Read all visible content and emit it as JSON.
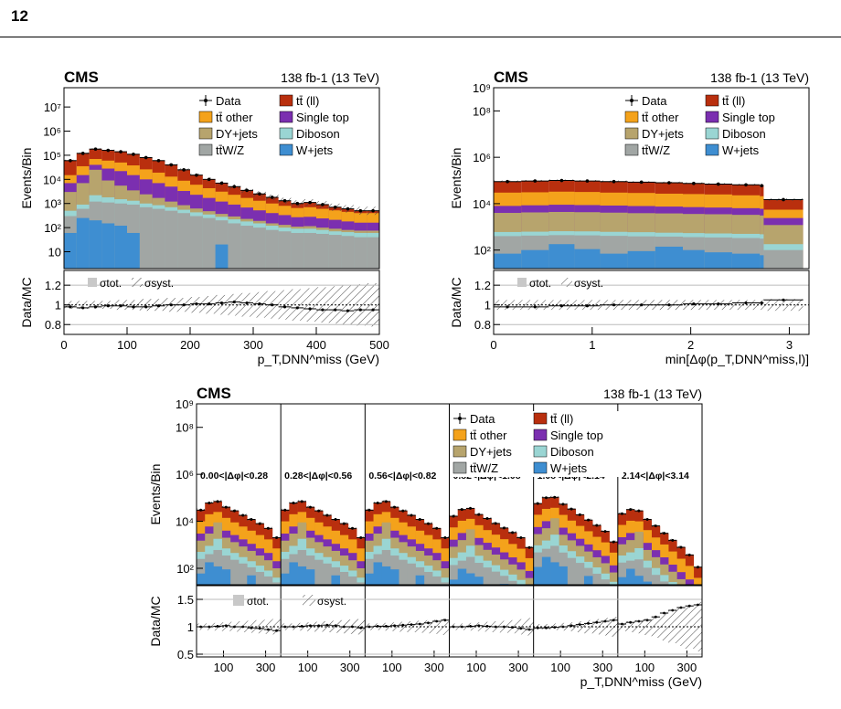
{
  "page": {
    "number": "12"
  },
  "colors": {
    "ttll": "#b92f0e",
    "ttother": "#f4a21b",
    "singletop": "#7b2fb0",
    "dyjets": "#b7a46d",
    "diboson": "#9ad5d3",
    "ttwz": "#a1a6a4",
    "wjets": "#3e8ed1",
    "stat_band": "#c8c8c8"
  },
  "legend": {
    "data": "Data",
    "ttll": "tt̄ (ll)",
    "ttother": "tt̄ other",
    "singletop": "Single top",
    "dyjets": "DY+jets",
    "diboson": "Diboson",
    "ttwz": "tt̄W/Z",
    "wjets": "W+jets"
  },
  "ratio_legend": {
    "tot": "σtot.",
    "syst": "σsyst."
  },
  "common": {
    "experiment": "CMS",
    "lumi": "138 fb-1 (13 TeV)",
    "ylabel_top": "Events/Bin",
    "ylabel_ratio": "Data/MC"
  },
  "chart_data": [
    {
      "id": "ptmiss",
      "type": "bar",
      "stacked": true,
      "log_y": true,
      "xlabel": "p_T,DNN^miss (GeV)",
      "xlim": [
        0,
        500
      ],
      "ylim_exponent": [
        0.3,
        7.8
      ],
      "ratio_ylim": [
        0.7,
        1.35
      ],
      "x_ticks": [
        0,
        100,
        200,
        300,
        400,
        500
      ],
      "y_ticks": [
        "10",
        "10²",
        "10³",
        "10⁴",
        "10⁵",
        "10⁶",
        "10⁷"
      ],
      "ratio_ticks": [
        0.8,
        1,
        1.2
      ],
      "bin_edges": [
        0,
        20,
        40,
        60,
        80,
        100,
        120,
        140,
        160,
        180,
        200,
        220,
        240,
        260,
        280,
        300,
        320,
        340,
        360,
        380,
        400,
        420,
        440,
        460,
        480,
        500
      ],
      "data": [
        60000,
        120000,
        180000,
        160000,
        140000,
        110000,
        80000,
        60000,
        40000,
        25000,
        15000,
        10000,
        7000,
        5000,
        3500,
        2500,
        1800,
        1300,
        1000,
        1100,
        900,
        700,
        600,
        500,
        500
      ],
      "stack_totals": {
        "wjets": [
          60,
          250,
          200,
          150,
          120,
          60,
          0,
          0,
          0,
          0,
          0,
          0,
          20,
          0,
          0,
          0,
          0,
          0,
          0,
          0,
          0,
          0,
          0,
          0,
          0
        ],
        "ttwz": [
          300,
          600,
          1200,
          1100,
          1000,
          900,
          700,
          600,
          500,
          400,
          300,
          250,
          200,
          150,
          120,
          100,
          80,
          70,
          60,
          60,
          55,
          50,
          45,
          40,
          40
        ],
        "diboson": [
          500,
          900,
          2200,
          1800,
          1500,
          1300,
          1000,
          850,
          700,
          550,
          430,
          350,
          280,
          220,
          180,
          150,
          120,
          100,
          90,
          90,
          80,
          70,
          65,
          60,
          60
        ],
        "dyjets": [
          3000,
          7000,
          25000,
          9000,
          5500,
          3500,
          2400,
          1700,
          1200,
          850,
          620,
          480,
          370,
          290,
          230,
          190,
          150,
          130,
          110,
          115,
          100,
          90,
          80,
          75,
          75
        ],
        "singletop": [
          7000,
          15000,
          40000,
          28000,
          22000,
          15000,
          10000,
          7000,
          5000,
          3300,
          2300,
          1700,
          1200,
          900,
          680,
          520,
          400,
          330,
          270,
          280,
          240,
          210,
          180,
          160,
          160
        ],
        "ttother": [
          15000,
          35000,
          70000,
          60000,
          50000,
          38000,
          26000,
          19000,
          13000,
          8800,
          6000,
          4300,
          3100,
          2300,
          1700,
          1300,
          1000,
          800,
          650,
          700,
          600,
          520,
          450,
          400,
          400
        ],
        "ttll": [
          60000,
          120000,
          180000,
          160000,
          140000,
          110000,
          80000,
          60000,
          40000,
          25000,
          15000,
          10000,
          7000,
          5000,
          3500,
          2500,
          1800,
          1300,
          1000,
          1100,
          900,
          700,
          600,
          500,
          500
        ]
      },
      "ratio_values": [
        0.98,
        0.97,
        0.98,
        0.99,
        0.99,
        0.98,
        0.98,
        0.99,
        1.0,
        1.0,
        1.01,
        1.01,
        1.02,
        1.03,
        1.02,
        1.01,
        1.0,
        0.98,
        0.97,
        0.96,
        0.95,
        0.95,
        0.94,
        0.95,
        0.95
      ],
      "syst_halfwidth": [
        0.04,
        0.04,
        0.04,
        0.04,
        0.05,
        0.05,
        0.06,
        0.06,
        0.07,
        0.07,
        0.08,
        0.09,
        0.1,
        0.11,
        0.12,
        0.13,
        0.14,
        0.15,
        0.16,
        0.17,
        0.18,
        0.19,
        0.2,
        0.21,
        0.22
      ]
    },
    {
      "id": "mindphi",
      "type": "bar",
      "stacked": true,
      "log_y": true,
      "xlabel": "min[Δφ(p_T,DNN^miss,l)]",
      "xlim": [
        0,
        3.2
      ],
      "ylim_exponent": [
        1.2,
        9.0
      ],
      "ratio_ylim": [
        0.7,
        1.35
      ],
      "x_ticks": [
        0,
        1,
        2,
        3
      ],
      "y_ticks": [
        "10²",
        "10⁴",
        "10⁶",
        "10⁸",
        "10⁹"
      ],
      "ratio_ticks": [
        0.8,
        1,
        1.2
      ],
      "bin_edges": [
        0,
        0.28,
        0.56,
        0.82,
        1.08,
        1.36,
        1.64,
        1.92,
        2.14,
        2.42,
        2.7,
        2.74,
        3.14
      ],
      "data": [
        90000,
        95000,
        100000,
        95000,
        90000,
        85000,
        80000,
        75000,
        70000,
        65000,
        60000,
        15000
      ],
      "stack_totals": {
        "wjets": [
          70,
          100,
          180,
          110,
          70,
          90,
          140,
          100,
          80,
          70,
          60,
          0
        ],
        "ttwz": [
          400,
          420,
          440,
          430,
          410,
          390,
          380,
          360,
          350,
          330,
          310,
          100
        ],
        "diboson": [
          600,
          620,
          650,
          640,
          610,
          590,
          560,
          540,
          520,
          500,
          480,
          180
        ],
        "dyjets": [
          4000,
          4200,
          4400,
          4300,
          4100,
          3900,
          3800,
          3600,
          3500,
          3300,
          3100,
          1200
        ],
        "singletop": [
          8000,
          8500,
          9000,
          8700,
          8300,
          7900,
          7500,
          7100,
          6800,
          6400,
          6000,
          2400
        ],
        "ttother": [
          30000,
          31000,
          33000,
          32000,
          30000,
          29000,
          27000,
          26000,
          25000,
          23000,
          21000,
          5500
        ],
        "ttll": [
          90000,
          95000,
          100000,
          95000,
          90000,
          85000,
          80000,
          75000,
          70000,
          65000,
          60000,
          15000
        ]
      },
      "ratio_values": [
        0.98,
        0.98,
        0.99,
        0.99,
        1.0,
        1.0,
        1.0,
        1.01,
        1.01,
        1.02,
        1.02,
        1.05
      ],
      "syst_halfwidth": [
        0.05,
        0.05,
        0.05,
        0.05,
        0.05,
        0.05,
        0.05,
        0.05,
        0.05,
        0.05,
        0.05,
        0.06
      ]
    },
    {
      "id": "combined",
      "type": "bar",
      "stacked": true,
      "log_y": true,
      "xlabel": "p_T,DNN^miss (GeV)",
      "ylim_exponent": [
        1.3,
        9.0
      ],
      "ratio_ylim": [
        0.45,
        1.75
      ],
      "y_ticks": [
        "10²",
        "10⁴",
        "10⁶",
        "10⁸",
        "10⁹"
      ],
      "ratio_ticks": [
        0.5,
        1,
        1.5
      ],
      "x_tick_labels": [
        "100",
        "300"
      ],
      "regions": [
        "0.00<|Δφ|<0.28",
        "0.28<|Δφ|<0.56",
        "0.56<|Δφ|<0.82",
        "0.82<|Δφ|<1.08",
        "1.08<|Δφ|<2.14",
        "2.14<|Δφ|<3.14"
      ],
      "region_shapes": {
        "ttll": [
          30000,
          60000,
          70000,
          40000,
          28000,
          18000,
          12000,
          8000,
          5000,
          2000
        ],
        "ttother": [
          10000,
          20000,
          25000,
          14000,
          9000,
          6000,
          4000,
          2600,
          1700,
          700
        ],
        "singletop": [
          3000,
          6000,
          8000,
          4000,
          2600,
          1700,
          1100,
          700,
          450,
          200
        ],
        "dyjets": [
          1500,
          3000,
          9000,
          2000,
          1300,
          850,
          550,
          350,
          220,
          100
        ],
        "diboson": [
          500,
          900,
          1800,
          700,
          450,
          300,
          200,
          130,
          80,
          40
        ],
        "ttwz": [
          250,
          400,
          600,
          350,
          230,
          160,
          110,
          70,
          45,
          25
        ],
        "wjets": [
          60,
          180,
          120,
          90,
          0,
          0,
          50,
          0,
          0,
          0
        ]
      },
      "region_scales": [
        1.0,
        1.0,
        1.0,
        0.55,
        1.9,
        0.7
      ],
      "region_tails": [
        1.0,
        1.0,
        1.0,
        0.7,
        0.35,
        0.08
      ],
      "ratio_per_region": [
        [
          1.0,
          1.0,
          1.01,
          1.02,
          1.0,
          1.0,
          0.98,
          0.97,
          0.95,
          0.93
        ],
        [
          1.0,
          1.0,
          1.01,
          1.02,
          1.02,
          1.03,
          1.02,
          1.0,
          1.0,
          0.98
        ],
        [
          1.0,
          1.01,
          1.01,
          1.02,
          1.03,
          1.04,
          1.05,
          1.07,
          1.1,
          1.12
        ],
        [
          1.0,
          1.0,
          1.01,
          1.02,
          1.01,
          1.0,
          1.0,
          0.99,
          0.97,
          0.95
        ],
        [
          0.98,
          0.98,
          0.99,
          1.0,
          1.02,
          1.04,
          1.06,
          1.08,
          1.1,
          1.12
        ],
        [
          1.05,
          1.08,
          1.1,
          1.12,
          1.18,
          1.25,
          1.3,
          1.35,
          1.38,
          1.4
        ]
      ],
      "syst_per_region": [
        [
          0.06,
          0.06,
          0.07,
          0.08,
          0.09,
          0.1,
          0.11,
          0.12,
          0.13,
          0.14
        ],
        [
          0.06,
          0.06,
          0.07,
          0.08,
          0.09,
          0.1,
          0.11,
          0.12,
          0.13,
          0.14
        ],
        [
          0.06,
          0.06,
          0.07,
          0.08,
          0.09,
          0.1,
          0.11,
          0.12,
          0.13,
          0.15
        ],
        [
          0.06,
          0.06,
          0.07,
          0.08,
          0.09,
          0.1,
          0.11,
          0.12,
          0.14,
          0.16
        ],
        [
          0.05,
          0.05,
          0.06,
          0.07,
          0.08,
          0.1,
          0.12,
          0.14,
          0.16,
          0.18
        ],
        [
          0.08,
          0.1,
          0.12,
          0.15,
          0.2,
          0.25,
          0.3,
          0.35,
          0.4,
          0.45
        ]
      ]
    }
  ]
}
